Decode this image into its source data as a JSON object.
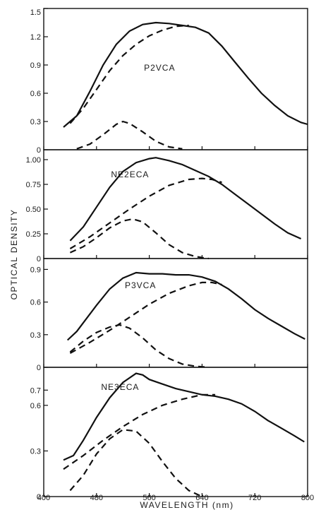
{
  "chart_data": {
    "type": "line",
    "xlabel": "WAVELENGTH (nm)",
    "ylabel": "OPTICAL DENSITY",
    "xlim": [
      400,
      800
    ],
    "x_ticks": [
      "400",
      "480",
      "560",
      "640",
      "720",
      "800"
    ],
    "panels": [
      {
        "label": "P2VCA",
        "ylim": [
          0,
          1.5
        ],
        "y_ticks": [
          0,
          0.3,
          0.6,
          0.9,
          1.2,
          1.5
        ],
        "y_tick_labels": [
          "0",
          "0.3",
          "0.6",
          "0.9",
          "1.2",
          "1.5"
        ],
        "series": [
          {
            "style": "solid",
            "x": [
              430,
              450,
              470,
              490,
              510,
              530,
              550,
              570,
              590,
              610,
              630,
              650,
              670,
              690,
              710,
              730,
              750,
              770,
              790,
              800
            ],
            "y": [
              0.24,
              0.36,
              0.62,
              0.9,
              1.12,
              1.26,
              1.33,
              1.35,
              1.34,
              1.32,
              1.3,
              1.24,
              1.1,
              0.93,
              0.76,
              0.6,
              0.47,
              0.36,
              0.29,
              0.27
            ]
          },
          {
            "style": "dashed",
            "x": [
              440,
              460,
              480,
              500,
              520,
              540,
              560,
              580,
              600,
              620
            ],
            "y": [
              0.28,
              0.44,
              0.64,
              0.84,
              1.0,
              1.12,
              1.21,
              1.27,
              1.31,
              1.32
            ]
          },
          {
            "style": "dashed",
            "x": [
              450,
              470,
              490,
              510,
              520,
              530,
              550,
              570,
              590,
              610
            ],
            "y": [
              0.01,
              0.06,
              0.16,
              0.27,
              0.3,
              0.28,
              0.19,
              0.09,
              0.03,
              0.01
            ]
          }
        ]
      },
      {
        "label": "NE2ECA",
        "ylim": [
          0,
          1.1
        ],
        "y_ticks": [
          0,
          0.25,
          0.5,
          0.75,
          1.0
        ],
        "y_tick_labels": [
          "0",
          "0.25",
          "0.50",
          "0.75",
          "1.00"
        ],
        "series": [
          {
            "style": "solid",
            "x": [
              440,
              460,
              480,
              500,
              520,
              540,
              560,
              570,
              590,
              610,
              630,
              650,
              670,
              690,
              710,
              730,
              750,
              770,
              790
            ],
            "y": [
              0.18,
              0.32,
              0.52,
              0.72,
              0.88,
              0.97,
              1.01,
              1.02,
              0.99,
              0.95,
              0.89,
              0.83,
              0.75,
              0.65,
              0.55,
              0.45,
              0.35,
              0.26,
              0.2
            ]
          },
          {
            "style": "dashed",
            "x": [
              440,
              470,
              500,
              530,
              560,
              590,
              620,
              640,
              655,
              670
            ],
            "y": [
              0.1,
              0.22,
              0.36,
              0.5,
              0.63,
              0.74,
              0.8,
              0.81,
              0.8,
              0.77
            ]
          },
          {
            "style": "dashed",
            "x": [
              440,
              460,
              480,
              500,
              520,
              535,
              550,
              570,
              590,
              610,
              630,
              650
            ],
            "y": [
              0.06,
              0.12,
              0.21,
              0.31,
              0.38,
              0.4,
              0.37,
              0.26,
              0.14,
              0.06,
              0.02,
              0.0
            ]
          }
        ]
      },
      {
        "label": "P3VCA",
        "ylim": [
          0,
          1.0
        ],
        "y_ticks": [
          0,
          0.3,
          0.6,
          0.9
        ],
        "y_tick_labels": [
          "0",
          "0.3",
          "0.6",
          "0.9"
        ],
        "series": [
          {
            "style": "solid",
            "x": [
              436,
              450,
              465,
              480,
              500,
              520,
              540,
              560,
              580,
              600,
              620,
              640,
              660,
              680,
              700,
              720,
              740,
              760,
              780,
              796
            ],
            "y": [
              0.25,
              0.33,
              0.45,
              0.57,
              0.72,
              0.82,
              0.87,
              0.86,
              0.86,
              0.85,
              0.85,
              0.83,
              0.79,
              0.72,
              0.63,
              0.53,
              0.45,
              0.38,
              0.31,
              0.26
            ]
          },
          {
            "style": "dashed",
            "x": [
              440,
              470,
              500,
              530,
              560,
              590,
              620,
              640,
              655,
              670
            ],
            "y": [
              0.13,
              0.23,
              0.34,
              0.46,
              0.58,
              0.68,
              0.75,
              0.78,
              0.78,
              0.76
            ]
          },
          {
            "style": "dashed",
            "x": [
              440,
              460,
              480,
              500,
              515,
              530,
              550,
              570,
              590,
              610,
              630,
              650
            ],
            "y": [
              0.14,
              0.24,
              0.32,
              0.37,
              0.39,
              0.36,
              0.27,
              0.16,
              0.08,
              0.03,
              0.01,
              0.0
            ]
          }
        ]
      },
      {
        "label": "NE3ECA",
        "ylim": [
          0,
          0.85
        ],
        "y_ticks": [
          0,
          0.3,
          0.6,
          0.7
        ],
        "y_tick_labels": [
          "0",
          "0.3",
          "0.6",
          "0.7"
        ],
        "series": [
          {
            "style": "solid",
            "x": [
              430,
              445,
              460,
              480,
              500,
              520,
              540,
              550,
              560,
              580,
              600,
              620,
              640,
              660,
              680,
              700,
              720,
              740,
              760,
              780,
              795
            ],
            "y": [
              0.24,
              0.27,
              0.37,
              0.52,
              0.65,
              0.75,
              0.81,
              0.8,
              0.77,
              0.74,
              0.71,
              0.69,
              0.67,
              0.66,
              0.64,
              0.61,
              0.56,
              0.5,
              0.45,
              0.4,
              0.36
            ]
          },
          {
            "style": "dashed",
            "x": [
              430,
              460,
              490,
              520,
              550,
              580,
              610,
              640,
              660
            ],
            "y": [
              0.18,
              0.27,
              0.37,
              0.46,
              0.54,
              0.6,
              0.64,
              0.67,
              0.67
            ]
          },
          {
            "style": "dashed",
            "x": [
              440,
              460,
              480,
              500,
              520,
              540,
              560,
              580,
              600,
              620,
              640
            ],
            "y": [
              0.04,
              0.14,
              0.28,
              0.38,
              0.44,
              0.43,
              0.35,
              0.23,
              0.12,
              0.04,
              0.0
            ]
          }
        ]
      }
    ]
  }
}
